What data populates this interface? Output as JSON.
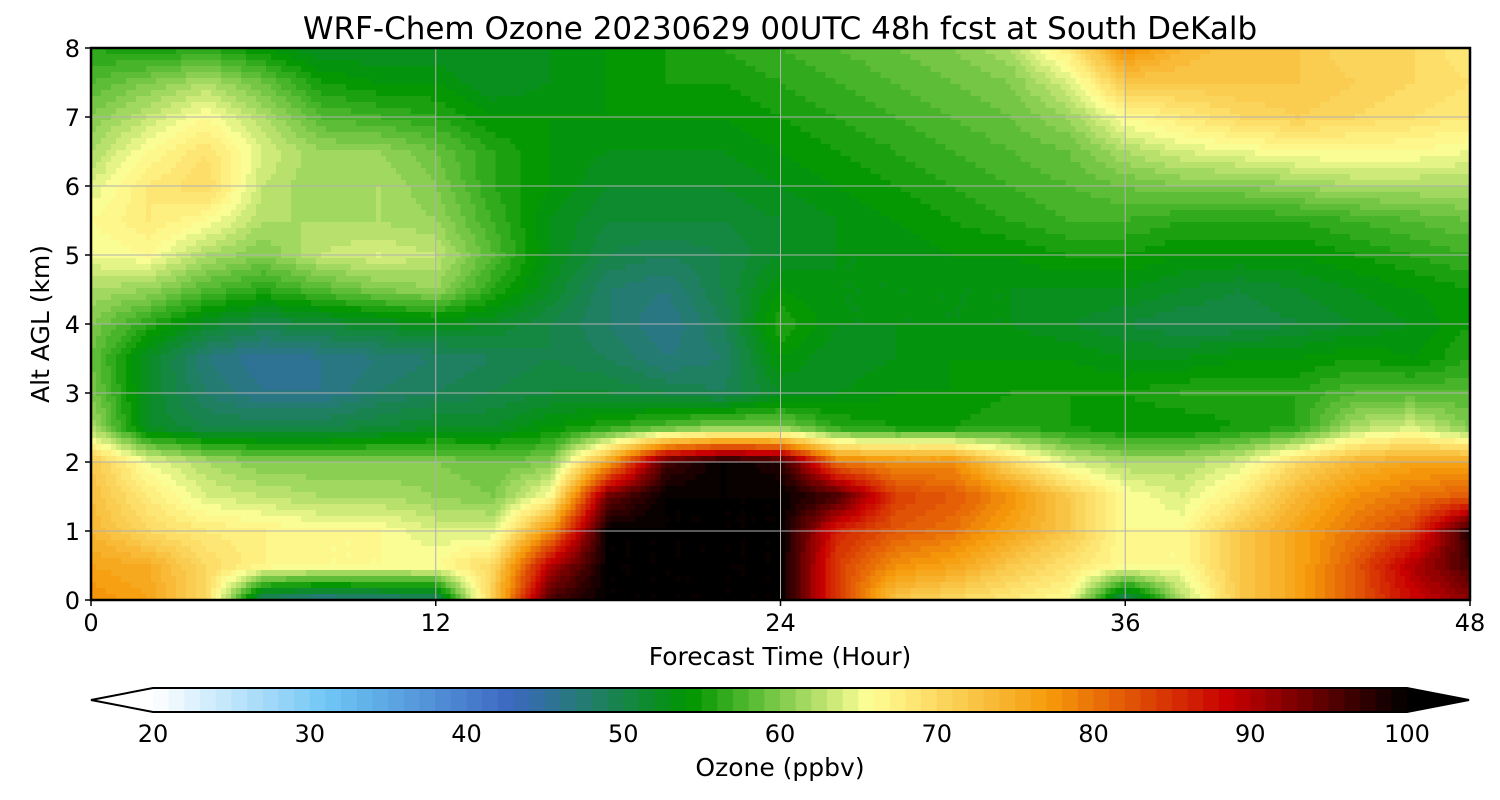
{
  "chart_data": {
    "type": "heatmap",
    "title": "WRF-Chem Ozone  20230629 00UTC 48h fcst at South DeKalb",
    "xlabel": "Forecast Time (Hour)",
    "ylabel": "Alt AGL (km)",
    "xlim": [
      0,
      48
    ],
    "ylim": [
      0,
      8
    ],
    "xticks": [
      0,
      12,
      24,
      36,
      48
    ],
    "yticks": [
      0,
      1,
      2,
      3,
      4,
      5,
      6,
      7,
      8
    ],
    "grid": true,
    "x": [
      0,
      2,
      4,
      6,
      8,
      10,
      12,
      14,
      16,
      18,
      20,
      22,
      24,
      26,
      28,
      30,
      32,
      34,
      36,
      38,
      40,
      42,
      44,
      46,
      48
    ],
    "y": [
      0,
      0.5,
      1,
      1.5,
      2,
      2.5,
      3,
      3.5,
      4,
      4.5,
      5,
      5.5,
      6,
      6.5,
      7,
      7.5,
      8
    ],
    "z": [
      [
        78,
        76,
        70,
        48,
        46,
        47,
        48,
        72,
        96,
        100,
        100,
        100,
        100,
        84,
        72,
        70,
        68,
        66,
        48,
        62,
        72,
        76,
        82,
        88,
        92
      ],
      [
        76,
        75,
        70,
        67,
        66,
        66,
        66,
        70,
        90,
        100,
        100,
        100,
        100,
        84,
        78,
        76,
        72,
        69,
        66,
        66,
        72,
        76,
        82,
        90,
        96
      ],
      [
        74,
        70,
        68,
        67,
        66,
        66,
        64,
        64,
        78,
        100,
        100,
        100,
        100,
        86,
        82,
        80,
        76,
        72,
        66,
        66,
        72,
        76,
        80,
        84,
        98
      ],
      [
        73,
        68,
        64,
        63,
        62,
        62,
        61,
        60,
        66,
        94,
        100,
        100,
        100,
        96,
        84,
        82,
        78,
        72,
        66,
        64,
        68,
        74,
        78,
        80,
        82
      ],
      [
        72,
        65,
        62,
        60,
        60,
        60,
        60,
        59,
        60,
        76,
        96,
        100,
        98,
        80,
        78,
        78,
        70,
        64,
        62,
        62,
        64,
        70,
        74,
        76,
        76
      ],
      [
        62,
        52,
        50,
        50,
        50,
        51,
        52,
        52,
        54,
        56,
        58,
        60,
        60,
        56,
        55,
        55,
        56,
        55,
        54,
        54,
        55,
        56,
        62,
        64,
        60
      ],
      [
        60,
        52,
        48,
        46,
        46,
        48,
        49,
        50,
        51,
        51,
        50,
        49,
        52,
        53,
        54,
        54,
        55,
        55,
        55,
        56,
        56,
        56,
        58,
        58,
        58
      ],
      [
        59,
        52,
        47,
        45,
        46,
        47,
        48,
        49,
        50,
        49,
        47,
        48,
        54,
        52,
        53,
        54,
        54,
        54,
        53,
        53,
        54,
        54,
        55,
        54,
        56
      ],
      [
        60,
        56,
        52,
        50,
        51,
        52,
        53,
        52,
        50,
        48,
        46,
        49,
        56,
        53,
        53,
        53,
        53,
        52,
        51,
        50,
        50,
        51,
        52,
        53,
        55
      ],
      [
        62,
        61,
        58,
        56,
        58,
        60,
        61,
        56,
        52,
        48,
        47,
        50,
        54,
        53,
        53,
        53,
        53,
        53,
        53,
        52,
        51,
        52,
        53,
        54,
        55
      ],
      [
        65,
        66,
        62,
        60,
        63,
        64,
        63,
        58,
        53,
        50,
        49,
        50,
        52,
        53,
        53,
        54,
        54,
        55,
        55,
        54,
        54,
        54,
        55,
        56,
        57
      ],
      [
        66,
        68,
        66,
        62,
        62,
        62,
        61,
        57,
        53,
        51,
        51,
        51,
        52,
        53,
        54,
        55,
        56,
        57,
        57,
        56,
        56,
        56,
        57,
        58,
        59
      ],
      [
        64,
        68,
        70,
        63,
        61,
        62,
        60,
        56,
        54,
        52,
        52,
        52,
        53,
        54,
        55,
        56,
        57,
        58,
        59,
        60,
        60,
        61,
        62,
        62,
        62
      ],
      [
        62,
        66,
        69,
        64,
        61,
        61,
        59,
        56,
        54,
        53,
        53,
        53,
        54,
        55,
        56,
        57,
        58,
        59,
        62,
        64,
        65,
        66,
        66,
        66,
        65
      ],
      [
        60,
        63,
        66,
        62,
        58,
        57,
        56,
        54,
        54,
        54,
        54,
        54,
        55,
        56,
        57,
        58,
        59,
        61,
        66,
        68,
        70,
        71,
        70,
        69,
        68
      ],
      [
        58,
        60,
        62,
        59,
        55,
        54,
        54,
        52,
        53,
        54,
        55,
        55,
        56,
        57,
        58,
        59,
        60,
        64,
        72,
        72,
        72,
        72,
        71,
        70,
        69
      ],
      [
        56,
        55,
        56,
        54,
        52,
        52,
        52,
        52,
        53,
        54,
        55,
        56,
        57,
        58,
        59,
        60,
        62,
        68,
        78,
        74,
        72,
        72,
        70,
        70,
        68
      ]
    ],
    "colorbar": {
      "label": "Ozone  (ppbv)",
      "min": 20,
      "max": 100,
      "step": 1,
      "extend": "both",
      "ticks": [
        20,
        30,
        40,
        50,
        60,
        70,
        80,
        90,
        100
      ],
      "colors": [
        "#ffffff",
        "#6cc4f4",
        "#3c68c0",
        "#009600",
        "#ffff96",
        "#f59a0a",
        "#c80000",
        "#000000"
      ]
    }
  }
}
